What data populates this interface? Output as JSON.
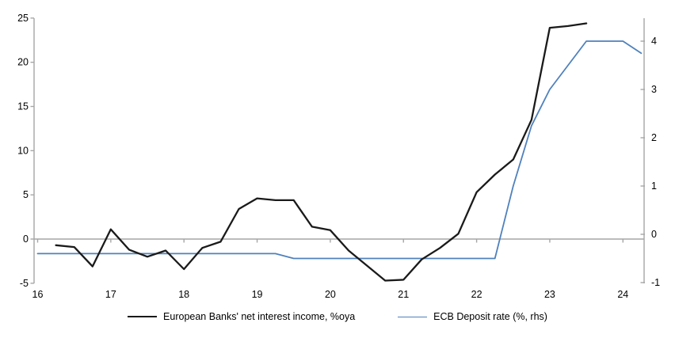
{
  "chart_data": {
    "type": "line",
    "title": "",
    "xlabel": "",
    "ylabel_left": "",
    "ylabel_right": "",
    "grid": "zero-line-only",
    "legend_position": "bottom-center",
    "axis_color": "#a6a6a6",
    "background": "#ffffff",
    "x_unit": "year (quarterly points)",
    "x": [
      16.0,
      16.25,
      16.5,
      16.75,
      17.0,
      17.25,
      17.5,
      17.75,
      18.0,
      18.25,
      18.5,
      18.75,
      19.0,
      19.25,
      19.5,
      19.75,
      20.0,
      20.25,
      20.5,
      20.75,
      21.0,
      21.25,
      21.5,
      21.75,
      22.0,
      22.25,
      22.5,
      22.75,
      23.0,
      23.25,
      23.5,
      23.75,
      24.0,
      24.25
    ],
    "x_axis": {
      "ticks": [
        16,
        17,
        18,
        19,
        20,
        21,
        22,
        23,
        24
      ]
    },
    "left_axis": {
      "ticks": [
        25,
        20,
        15,
        10,
        5,
        0,
        -5
      ],
      "range": [
        -5,
        25
      ]
    },
    "right_axis": {
      "ticks": [
        4,
        3,
        2,
        1,
        0,
        -1
      ],
      "range": [
        -1,
        4.5
      ]
    },
    "series": [
      {
        "name": "European Banks' net interest income, %oya",
        "axis": "left",
        "color": "#1a1a1a",
        "values": [
          null,
          -0.7,
          -0.9,
          -3.1,
          1.1,
          -1.2,
          -2.0,
          -1.3,
          -3.4,
          -1.0,
          -0.3,
          3.4,
          4.6,
          4.4,
          4.4,
          1.4,
          1.0,
          -1.3,
          -3.0,
          -4.7,
          -4.6,
          -2.3,
          -1.0,
          0.6,
          5.3,
          7.3,
          9.0,
          13.5,
          23.9,
          24.1,
          24.4,
          null,
          null,
          null
        ]
      },
      {
        "name": "ECB Deposit rate (%, rhs)",
        "axis": "right",
        "color": "#4f81bd",
        "values": [
          -0.4,
          -0.4,
          -0.4,
          -0.4,
          -0.4,
          -0.4,
          -0.4,
          -0.4,
          -0.4,
          -0.4,
          -0.4,
          -0.4,
          -0.4,
          -0.4,
          -0.5,
          -0.5,
          -0.5,
          -0.5,
          -0.5,
          -0.5,
          -0.5,
          -0.5,
          -0.5,
          -0.5,
          -0.5,
          -0.5,
          1.0,
          2.25,
          3.0,
          3.5,
          4.0,
          4.0,
          4.0,
          3.75
        ]
      }
    ]
  }
}
